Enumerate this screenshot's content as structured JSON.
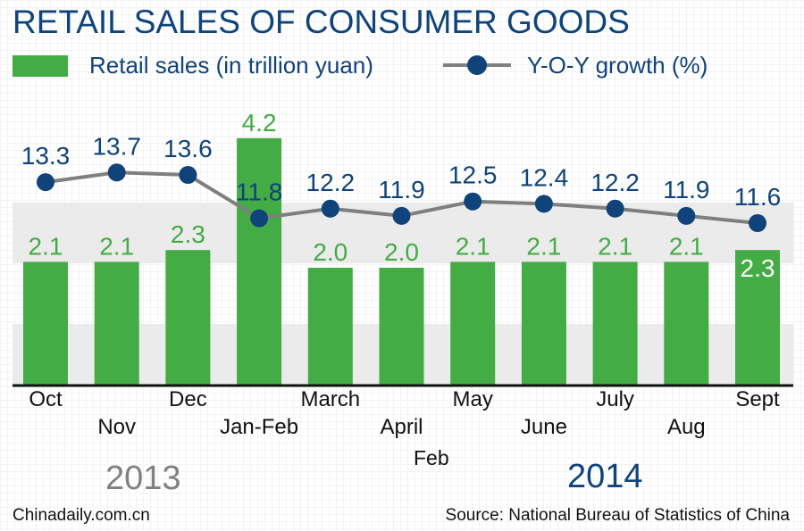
{
  "title": "RETAIL SALES OF CONSUMER GOODS",
  "legend": {
    "bars": "Retail sales (in trillion yuan)",
    "line": "Y-O-Y growth (%)"
  },
  "colors": {
    "bar": "#43ac45",
    "line": "#7f7f7f",
    "dot": "#0f4379",
    "title": "#0f4379"
  },
  "chart_data": {
    "type": "bar+line",
    "title": "RETAIL SALES OF CONSUMER GOODS",
    "categories": [
      "Oct",
      "Nov",
      "Dec",
      "Jan-Feb",
      "March",
      "April",
      "May",
      "June",
      "July",
      "Aug",
      "Sept"
    ],
    "series": [
      {
        "name": "Retail sales (in trillion yuan)",
        "type": "bar",
        "values": [
          2.1,
          2.1,
          2.3,
          4.2,
          2.0,
          2.0,
          2.1,
          2.1,
          2.1,
          2.1,
          2.3
        ]
      },
      {
        "name": "Y-O-Y growth (%)",
        "type": "line",
        "values": [
          13.3,
          13.7,
          13.6,
          11.8,
          12.2,
          11.9,
          12.5,
          12.4,
          12.2,
          11.9,
          11.6
        ]
      }
    ],
    "extra_label": "Feb",
    "year_labels": [
      "2013",
      "2014"
    ],
    "grid": false
  },
  "footer": {
    "left": "Chinadaily.com.cn",
    "right": "Source: National Bureau of Statistics of China"
  }
}
